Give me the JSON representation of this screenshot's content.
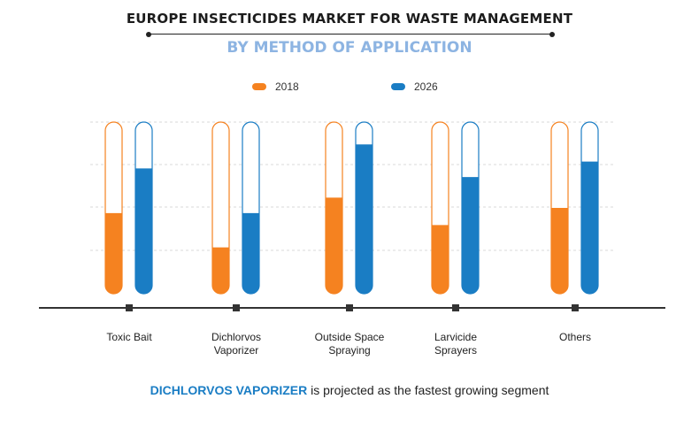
{
  "title": "EUROPE INSECTICIDES MARKET FOR WASTE MANAGEMENT",
  "subtitle": "BY METHOD OF APPLICATION",
  "colors": {
    "2018": "#f58220",
    "2026": "#1a7dc4",
    "subtitle": "#8db4e2",
    "grid": "#d8d8d8"
  },
  "legend": [
    {
      "label": "2018",
      "color": "#f58220"
    },
    {
      "label": "2026",
      "color": "#1a7dc4"
    }
  ],
  "chart_data": {
    "type": "bar",
    "categories": [
      "Toxic Bait",
      "Dichlorvos Vaporizer",
      "Outside Space Spraying",
      "Larvicide Sprayers",
      "Others"
    ],
    "category_label_lines": [
      [
        "Toxic Bait"
      ],
      [
        "Dichlorvos",
        "Vaporizer"
      ],
      [
        "Outside Space",
        "Spraying"
      ],
      [
        "Larvicide",
        "Sprayers"
      ],
      [
        "Others"
      ]
    ],
    "series": [
      {
        "name": "2018",
        "color": "#f58220",
        "values": [
          0.47,
          0.27,
          0.56,
          0.4,
          0.5
        ]
      },
      {
        "name": "2026",
        "color": "#1a7dc4",
        "values": [
          0.73,
          0.47,
          0.87,
          0.68,
          0.77
        ]
      }
    ],
    "ylim": [
      0,
      1
    ],
    "grid": true,
    "legend_position": "top-center",
    "value_axis_labels": false
  },
  "footer": {
    "highlight": "DICHLORVOS VAPORIZER",
    "rest": " is projected as the fastest growing segment"
  }
}
